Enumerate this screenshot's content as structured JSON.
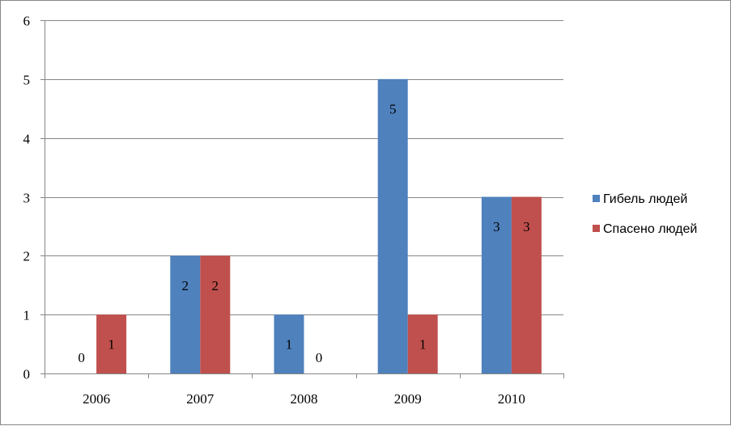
{
  "chart_data": {
    "type": "bar",
    "categories": [
      "2006",
      "2007",
      "2008",
      "2009",
      "2010"
    ],
    "series": [
      {
        "name": "Гибель людей",
        "values": [
          0,
          2,
          1,
          5,
          3
        ],
        "color": "#4F81BD"
      },
      {
        "name": "Спасено людей",
        "values": [
          1,
          2,
          0,
          1,
          3
        ],
        "color": "#C0504D"
      }
    ],
    "ylim": [
      0,
      6
    ],
    "yticks": [
      "0",
      "1",
      "2",
      "3",
      "4",
      "5",
      "6"
    ],
    "grid": true,
    "legend_position": "right",
    "data_labels": true
  }
}
